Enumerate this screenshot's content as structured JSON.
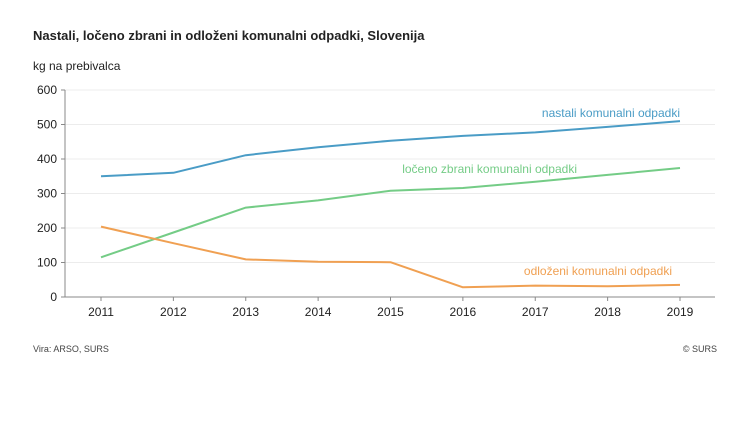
{
  "chart_data": {
    "type": "line",
    "title": "Nastali, ločeno zbrani in odloženi komunalni odpadki, Slovenija",
    "ylabel": "kg na prebivalca",
    "xlabel": "",
    "x": [
      "2011",
      "2012",
      "2013",
      "2014",
      "2015",
      "2016",
      "2017",
      "2018",
      "2019"
    ],
    "ylim": [
      0,
      600
    ],
    "yticks": [
      0,
      100,
      200,
      300,
      400,
      500,
      600
    ],
    "grid": true,
    "legend": "inline-labels",
    "series": [
      {
        "name": "nastali komunalni odpadki",
        "color": "#4a9cc6",
        "values": [
          350,
          360,
          411,
          434,
          453,
          467,
          477,
          493,
          510
        ]
      },
      {
        "name": "ločeno zbrani komunalni odpadki",
        "color": "#74cc86",
        "values": [
          115,
          187,
          259,
          280,
          308,
          316,
          334,
          354,
          374
        ]
      },
      {
        "name": "odloženi komunalni odpadki",
        "color": "#f0a052",
        "values": [
          204,
          156,
          109,
          102,
          101,
          28,
          33,
          31,
          35
        ]
      }
    ]
  },
  "footer": {
    "source": "Vira: ARSO, SURS",
    "copyright": "© SURS"
  }
}
